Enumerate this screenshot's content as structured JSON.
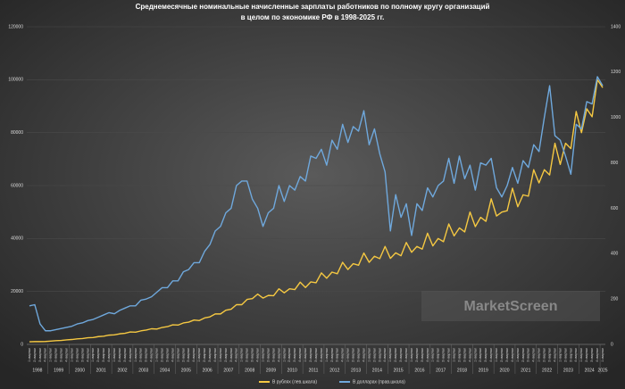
{
  "chart_data": {
    "type": "line",
    "title": [
      "Среднемесячные номинальные начисленные зарплаты работников по полному кругу организаций",
      "в целом по экономике РФ в 1998-2025 гг."
    ],
    "categories": [
      "1 квартал",
      "2 квартал",
      "3 квартал",
      "4 квартал",
      "1 квартал",
      "2 квартал",
      "3 квартал",
      "4 квартал",
      "1 квартал",
      "2 квартал",
      "3 квартал",
      "4 квартал",
      "1 квартал",
      "2 квартал",
      "3 квартал",
      "4 квартал",
      "1 квартал",
      "2 квартал",
      "3 квартал",
      "4 квартал",
      "1 квартал",
      "2 квартал",
      "3 квартал",
      "4 квартал",
      "1 квартал",
      "2 квартал",
      "3 квартал",
      "4 квартал",
      "1 квартал",
      "2 квартал",
      "3 квартал",
      "4 квартал",
      "1 квартал",
      "2 квартал",
      "3 квартал",
      "4 квартал",
      "1 квартал",
      "2 квартал",
      "3 квартал",
      "4 квартал",
      "1 квартал",
      "2 квартал",
      "3 квартал",
      "4 квартал",
      "1 квартал",
      "2 квартал",
      "3 квартал",
      "4 квартал",
      "1 квартал",
      "2 квартал",
      "3 квартал",
      "4 квартал",
      "1 квартал",
      "2 квартал",
      "3 квартал",
      "4 квартал",
      "1 квартал",
      "2 квартал",
      "3 квартал",
      "4 квартал",
      "1 квартал",
      "2 квартал",
      "3 квартал",
      "4 квартал",
      "1 квартал",
      "2 квартал",
      "3 квартал",
      "4 квартал",
      "1 квартал",
      "2 квартал",
      "3 квартал",
      "4 квартал",
      "1 квартал",
      "2 квартал",
      "3 квартал",
      "4 квартал",
      "1 квартал",
      "2 квартал",
      "3 квартал",
      "4 квартал",
      "1 квартал",
      "2 квартал",
      "3 квартал",
      "4 квартал",
      "1 квартал",
      "2 квартал",
      "3 квартал",
      "4 квартал",
      "1 квартал",
      "2 квартал",
      "3 квартал",
      "4 квартал",
      "1 квартал",
      "2 квартал",
      "3 квартал",
      "4 квартал",
      "1 квартал",
      "2 квартал",
      "3 квартал",
      "4 квартал",
      "1 квартал",
      "2 квартал",
      "3 квартал",
      "4 квартал",
      "1 квартал",
      "2 квартал",
      "3 квартал",
      "4 квартал",
      "1 квартал"
    ],
    "years": [
      1998,
      1999,
      2000,
      2001,
      2002,
      2003,
      2004,
      2005,
      2006,
      2007,
      2008,
      2009,
      2010,
      2011,
      2012,
      2013,
      2014,
      2015,
      2016,
      2017,
      2018,
      2019,
      2020,
      2021,
      2022,
      2023,
      2024,
      2025
    ],
    "series": [
      {
        "name": "В рублях (лев.шкала)",
        "color": "#f5c842",
        "axis": "y",
        "values": [
          1000,
          1050,
          1050,
          1100,
          1250,
          1400,
          1500,
          1700,
          1850,
          2100,
          2200,
          2500,
          2600,
          2950,
          3100,
          3500,
          3600,
          4000,
          4200,
          4700,
          4600,
          5100,
          5400,
          5900,
          5800,
          6400,
          6700,
          7400,
          7300,
          8100,
          8400,
          9200,
          9000,
          10000,
          10400,
          11500,
          11500,
          12900,
          13300,
          15000,
          15000,
          17000,
          17300,
          19000,
          17500,
          18500,
          18400,
          21000,
          19500,
          21000,
          20700,
          23500,
          21500,
          23600,
          23300,
          27000,
          25000,
          27300,
          26700,
          31000,
          28300,
          30500,
          29900,
          34500,
          31000,
          33300,
          32400,
          37000,
          32500,
          34600,
          33500,
          38500,
          34800,
          37000,
          36000,
          42000,
          37200,
          40000,
          38800,
          45500,
          41000,
          44000,
          42500,
          50000,
          44500,
          48000,
          46500,
          55000,
          48500,
          50000,
          50500,
          59000,
          52000,
          56500,
          56000,
          66000,
          61000,
          66000,
          64000,
          76000,
          68000,
          76000,
          74000,
          88000,
          80000,
          89000,
          86000,
          100000,
          97000
        ]
      },
      {
        "name": "В долларах (прав.шкала)",
        "color": "#6fa8dc",
        "axis": "y2",
        "values": [
          170,
          175,
          90,
          60,
          60,
          65,
          70,
          75,
          80,
          90,
          95,
          105,
          110,
          120,
          130,
          140,
          135,
          150,
          160,
          170,
          170,
          195,
          200,
          210,
          230,
          250,
          250,
          280,
          280,
          320,
          330,
          360,
          360,
          410,
          440,
          500,
          520,
          580,
          600,
          700,
          720,
          720,
          640,
          600,
          520,
          580,
          600,
          700,
          630,
          700,
          680,
          740,
          720,
          830,
          820,
          860,
          790,
          900,
          860,
          970,
          890,
          960,
          940,
          1030,
          880,
          950,
          840,
          760,
          500,
          660,
          560,
          620,
          480,
          620,
          590,
          690,
          650,
          700,
          720,
          820,
          710,
          830,
          730,
          790,
          680,
          800,
          790,
          820,
          690,
          650,
          700,
          780,
          710,
          810,
          780,
          880,
          850,
          1000,
          1140,
          920,
          900,
          830,
          750,
          970,
          950,
          1070,
          1060,
          1180,
          1140
        ]
      }
    ],
    "ylim": [
      0,
      120000
    ],
    "yticks": [
      0,
      20000,
      40000,
      60000,
      80000,
      100000,
      120000
    ],
    "y2lim": [
      0,
      1400
    ],
    "y2ticks": [
      0,
      200,
      400,
      600,
      800,
      1000,
      1200,
      1400
    ],
    "grid": true,
    "legend": "bottom",
    "watermark": "MarketScreen"
  }
}
